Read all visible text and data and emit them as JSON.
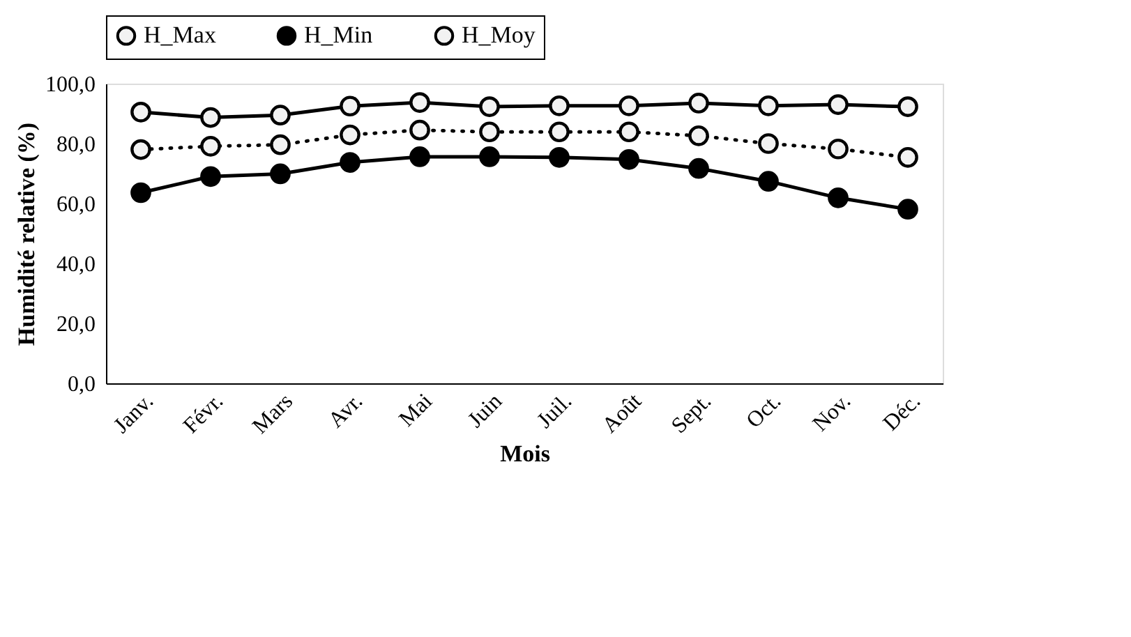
{
  "chart_data": {
    "type": "line",
    "xlabel": "Mois",
    "ylabel": "Humidité relative (%)",
    "categories": [
      "Janv.",
      "Févr.",
      "Mars",
      "Avr.",
      "Mai",
      "Juin",
      "Juil.",
      "Août",
      "Sept.",
      "Oct.",
      "Nov.",
      "Déc."
    ],
    "series": [
      {
        "name": "H_Max",
        "color": "#f2f2f2",
        "line_style": "solid",
        "marker": "circle",
        "values": [
          90.5,
          88.7,
          89.5,
          92.5,
          93.7,
          92.3,
          92.6,
          92.6,
          93.5,
          92.6,
          93.0,
          92.3
        ]
      },
      {
        "name": "H_Min",
        "color": "#000000",
        "line_style": "solid",
        "marker": "circle",
        "values": [
          63.6,
          69.0,
          69.9,
          73.7,
          75.6,
          75.6,
          75.4,
          74.7,
          71.7,
          67.4,
          61.9,
          58.1
        ]
      },
      {
        "name": "H_Moy",
        "color": "#f2f2f2",
        "line_style": "dotted",
        "marker": "circle",
        "values": [
          78.0,
          79.1,
          79.6,
          82.9,
          84.5,
          83.9,
          83.9,
          83.9,
          82.6,
          80.0,
          78.2,
          75.4
        ]
      }
    ],
    "ylim": [
      0,
      100
    ],
    "yticks": [
      {
        "value": 0,
        "label": "0,0"
      },
      {
        "value": 20,
        "label": "20,0"
      },
      {
        "value": 40,
        "label": "40,0"
      },
      {
        "value": 60,
        "label": "60,0"
      },
      {
        "value": 80,
        "label": "80,0"
      },
      {
        "value": 100,
        "label": "100,0"
      }
    ],
    "grid": false,
    "legend": "top"
  }
}
